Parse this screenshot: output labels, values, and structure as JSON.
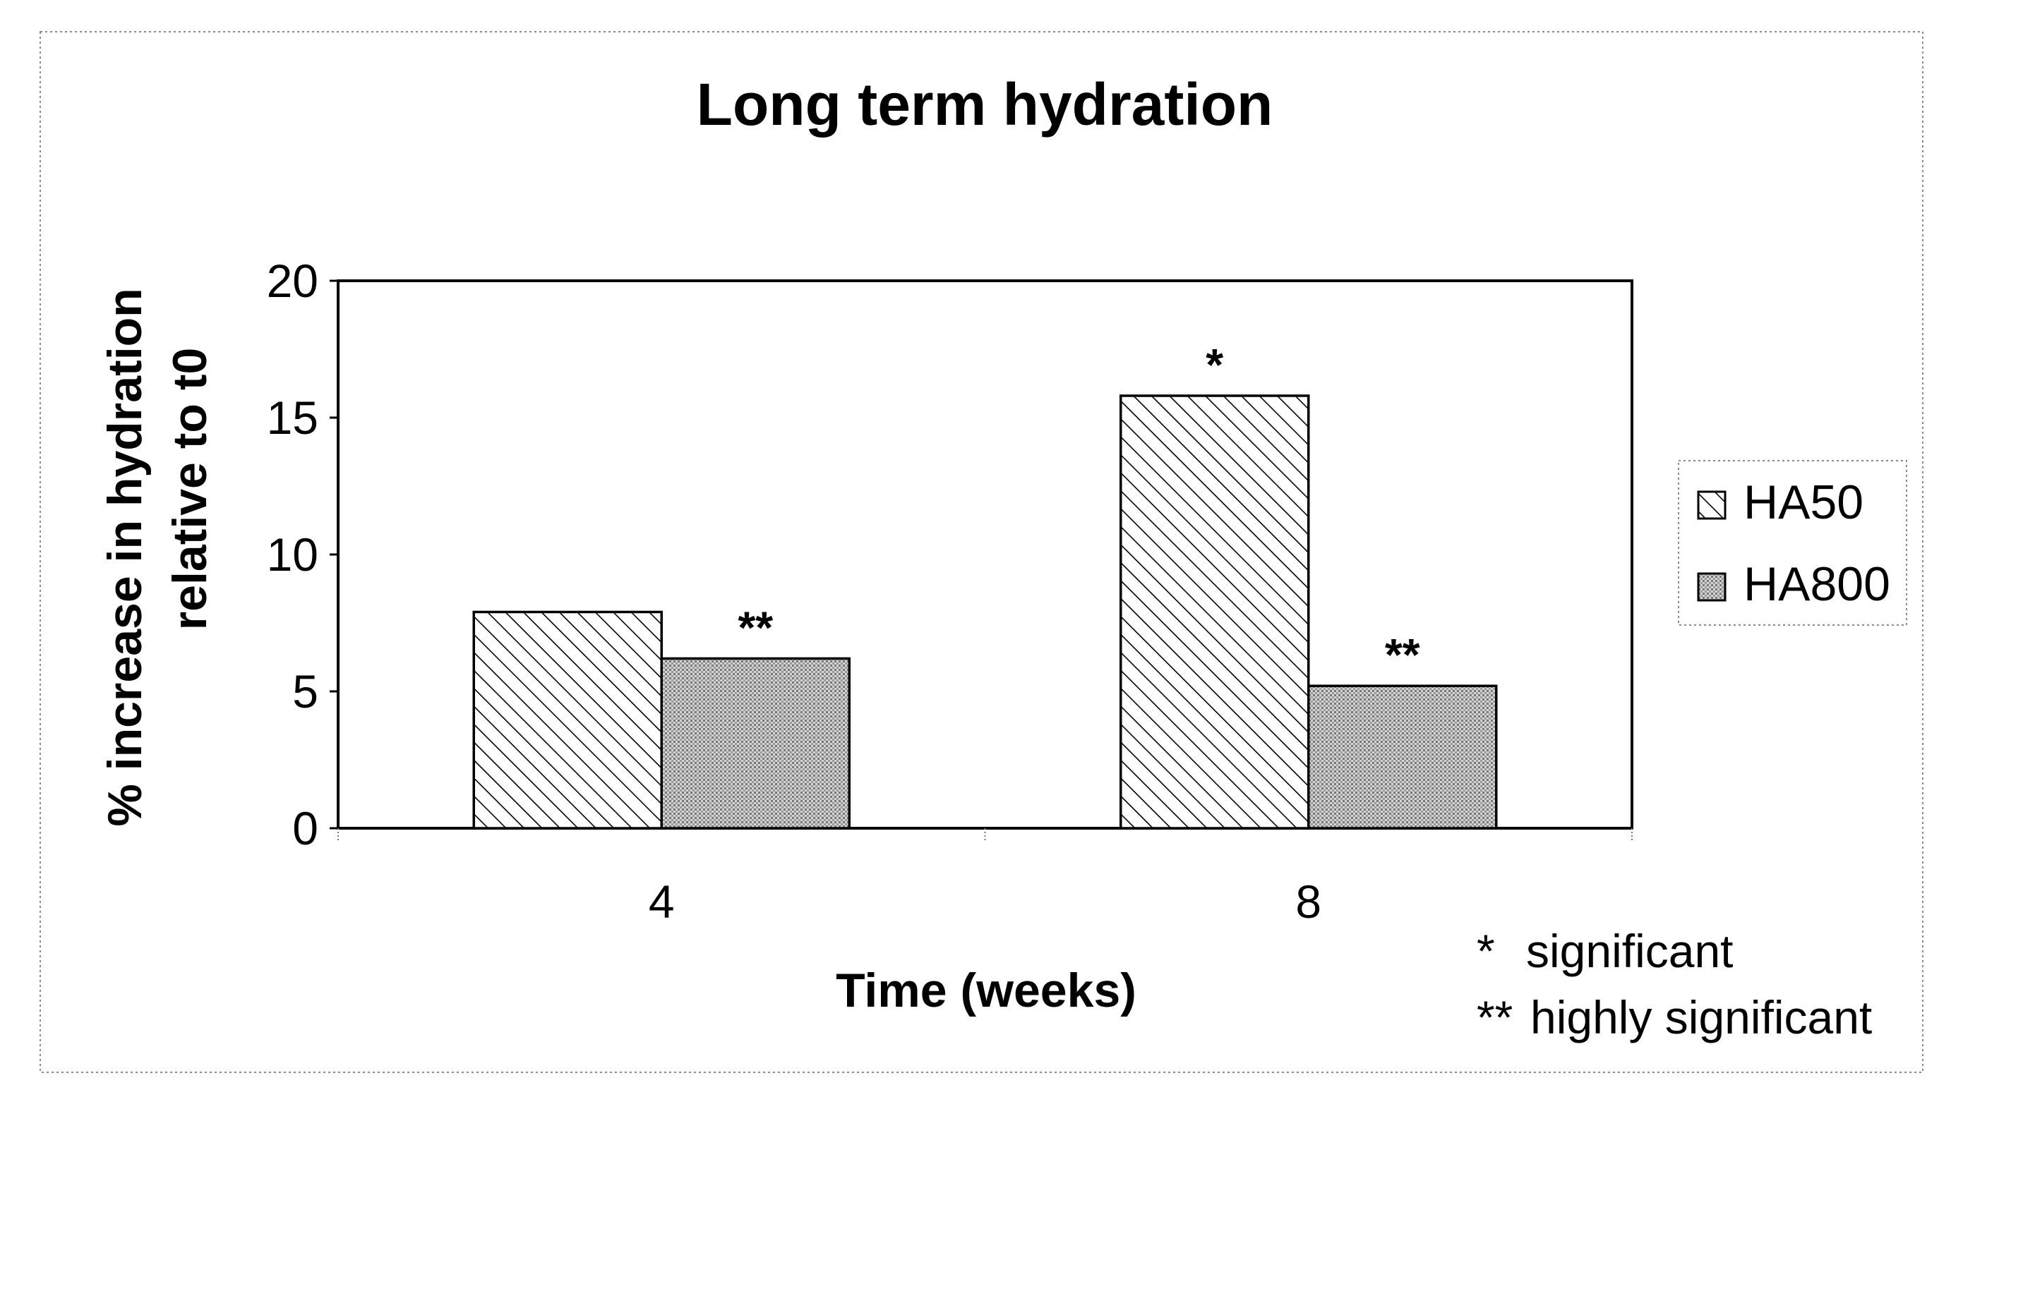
{
  "chart_data": {
    "type": "bar",
    "title": "Long term hydration",
    "xlabel": "Time (weeks)",
    "ylabel": [
      "% increase in hydration",
      "relative to t0"
    ],
    "categories": [
      "4",
      "8"
    ],
    "series": [
      {
        "name": "HA50",
        "values": [
          7.9,
          15.8
        ],
        "pattern": "diagonal-hatch"
      },
      {
        "name": "HA800",
        "values": [
          6.2,
          5.2
        ],
        "pattern": "fine-dots"
      }
    ],
    "significance": [
      {
        "category": "4",
        "series": "HA800",
        "mark": "**"
      },
      {
        "category": "8",
        "series": "HA50",
        "mark": "*"
      },
      {
        "category": "8",
        "series": "HA800",
        "mark": "**"
      }
    ],
    "notes": [
      {
        "mark": "*",
        "text": "significant"
      },
      {
        "mark": "**",
        "text": "highly significant"
      }
    ],
    "ylim": [
      0,
      20
    ],
    "yticks": [
      0,
      5,
      10,
      15,
      20
    ],
    "grid": false,
    "legend_position": "right",
    "colors": {
      "frame": "#000000",
      "dotted_border": "#8a8a8a",
      "dot_fill": "#c8c8c8",
      "background": "#ffffff"
    }
  }
}
